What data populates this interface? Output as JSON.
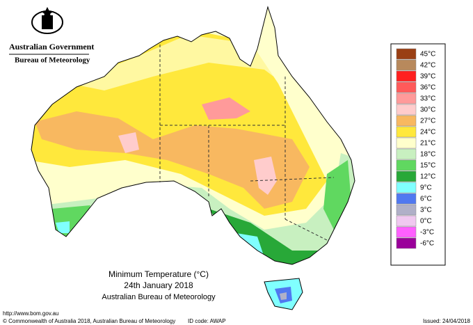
{
  "header": {
    "government": "Australian Government",
    "agency": "Bureau of Meteorology"
  },
  "legend": [
    {
      "label": "45°C",
      "color": "#9a3f14"
    },
    {
      "label": "42°C",
      "color": "#b8895c"
    },
    {
      "label": "39°C",
      "color": "#ff2020"
    },
    {
      "label": "36°C",
      "color": "#ff5a5a"
    },
    {
      "label": "33°C",
      "color": "#ff9a9a"
    },
    {
      "label": "30°C",
      "color": "#ffcccc"
    },
    {
      "label": "27°C",
      "color": "#f8b860"
    },
    {
      "label": "24°C",
      "color": "#ffe83c"
    },
    {
      "label": "21°C",
      "color": "#ffffcc"
    },
    {
      "label": "18°C",
      "color": "#c8f0c0"
    },
    {
      "label": "15°C",
      "color": "#60d860"
    },
    {
      "label": "12°C",
      "color": "#28a838"
    },
    {
      "label": "9°C",
      "color": "#80ffff"
    },
    {
      "label": "6°C",
      "color": "#5078f0"
    },
    {
      "label": "3°C",
      "color": "#b0b0c8"
    },
    {
      "label": "0°C",
      "color": "#f0c8f0"
    },
    {
      "label": "-3°C",
      "color": "#ff60ff"
    },
    {
      "label": "-6°C",
      "color": "#9a009a"
    }
  ],
  "title": {
    "line1": "Minimum Temperature (°C)",
    "line2": "24th January 2018",
    "line3": "Australian Bureau of Meteorology"
  },
  "footer": {
    "url": "http://www.bom.gov.au",
    "copyright": "© Commonwealth of Australia 2018, Australian Bureau of Meteorology",
    "id_code": "ID code: AWAP",
    "issued": "Issued: 24/04/2018"
  }
}
